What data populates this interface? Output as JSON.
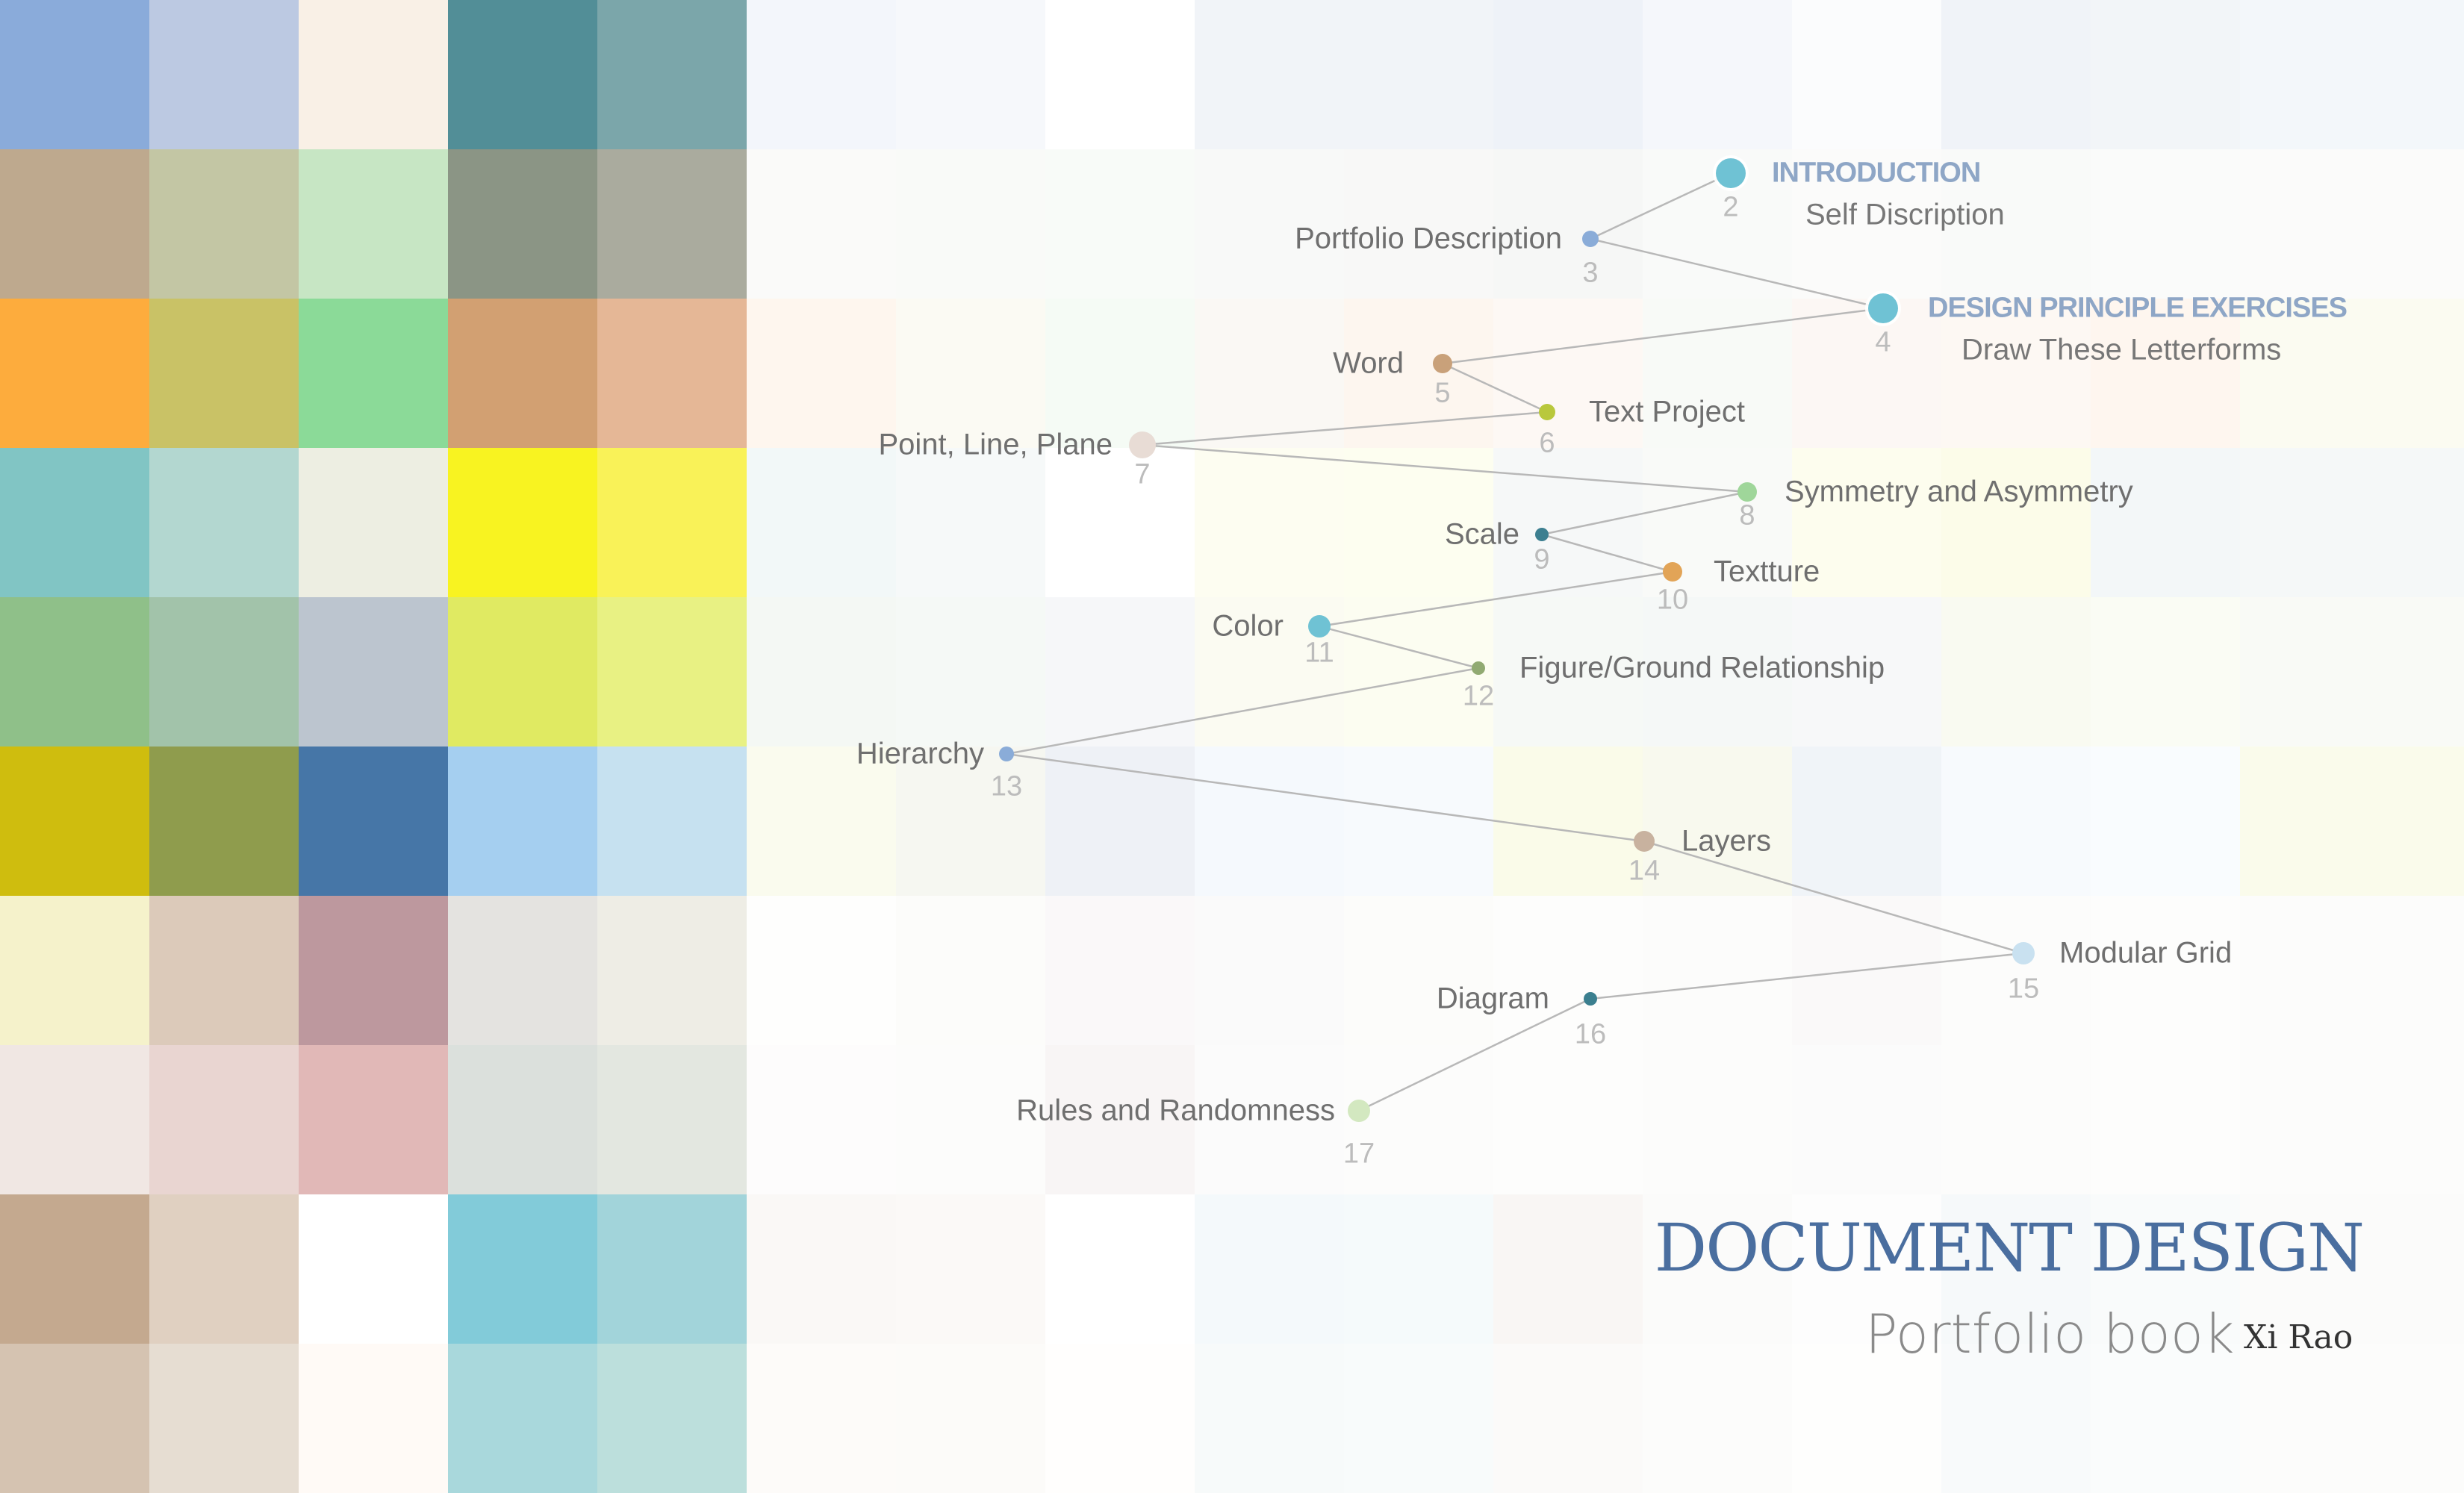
{
  "palette": {
    "rows": [
      [
        "#8aabda",
        "#bcc9e2",
        "#f9f0e6",
        "#528e97",
        "#7ba6aa",
        "#f3f6fb",
        "#f6f8fb",
        "#ffffff",
        "#f1f4f8",
        "#f1f4f8",
        "#eef2f8",
        "#f5f7fb",
        "#fbfcfd",
        "#f0f3f8",
        "#f2f5f8",
        "#f3f7fa"
      ],
      [
        "#bea98e",
        "#c3c6a4",
        "#c7e6c4",
        "#8b9585",
        "#aaab9e",
        "#fafaf9",
        "#f9faf8",
        "#f8fbf8",
        "#f8f9f8",
        "#f8f8f7",
        "#f6f7f6",
        "#f9faf9",
        "#fbfbfa",
        "#f9faf9",
        "#fafbfa",
        "#fbfbfa"
      ],
      [
        "#fdac3d",
        "#c9c266",
        "#8bda98",
        "#d2a072",
        "#e5b796",
        "#fef6ee",
        "#fbfaf3",
        "#f5fbf5",
        "#faf8f4",
        "#fdf6ef",
        "#fdf8f4",
        "#f8faf7",
        "#fcf7f4",
        "#fdf8f3",
        "#fef6ef",
        "#fbfbf1"
      ],
      [
        "#81c5c4",
        "#b3d7d0",
        "#edeee2",
        "#f8f321",
        "#f9f258",
        "#f2f8f8",
        "#f6f9f9",
        "#ffffff",
        "#fdfdf1",
        "#fdfef0",
        "#f6f8f8",
        "#f9faf8",
        "#fdfdee",
        "#fcfce9",
        "#f3f7f8",
        "#f5f8f8"
      ],
      [
        "#8fc089",
        "#a2c3aa",
        "#bcc5cf",
        "#e0ea62",
        "#e8f183",
        "#f4f8f4",
        "#f5f9f6",
        "#f6f7f9",
        "#fbfbf2",
        "#fcfdf1",
        "#f6f9f6",
        "#f5f8f7",
        "#f7f8f9",
        "#f9faf1",
        "#fafcf4",
        "#f9faf6"
      ],
      [
        "#cfbd0e",
        "#8f9c4d",
        "#4676a7",
        "#a5cff0",
        "#c6e1f0",
        "#fafbee",
        "#f6f7f1",
        "#eef1f6",
        "#f5f9fd",
        "#f7fafd",
        "#fafbe9",
        "#f8f9ee",
        "#f0f4f8",
        "#f7fafd",
        "#f9fcfe",
        "#fafbeb"
      ],
      [
        "#f5f2cb",
        "#dccaba",
        "#bd989e",
        "#e4e3e0",
        "#eeede5",
        "#fefefd",
        "#fcfcfa",
        "#faf8f9",
        "#fafafa",
        "#fcfcfa",
        "#fdfdfc",
        "#fcfcfb",
        "#faf9f9",
        "#fcfcfb",
        "#fdfdfc",
        "#fcfcfb"
      ],
      [
        "#f0e7e3",
        "#e9d5d1",
        "#e1b8b7",
        "#dbe0dc",
        "#e3e7e0",
        "#fdfcfc",
        "#fcfcfb",
        "#f8f5f5",
        "#fbfbfb",
        "#fcfcfb",
        "#fdfdfc",
        "#fcfcfb",
        "#fbfbfb",
        "#fcfcfb",
        "#fdfdfc",
        "#fcfcfb"
      ],
      [
        "#c4a98f",
        "#e0d0c1",
        "#ffffff",
        "#82cbd9",
        "#a2d4da",
        "#faf8f6",
        "#fbf9f7",
        "#ffffff",
        "#f4f9fb",
        "#f5fafb",
        "#f9f6f4",
        "#fbfbfa",
        "#fdfdfd",
        "#f6f9fa",
        "#f9fbfb",
        "#fbfbfa"
      ],
      [
        "#d5c3b1",
        "#e6ddd2",
        "#fffaf6",
        "#a9d8dc",
        "#bcdfdc",
        "#fdfbf9",
        "#fcfbf9",
        "#fffefd",
        "#f7fafa",
        "#f8fbfb",
        "#fbfaf9",
        "#fcfcfb",
        "#fefefd",
        "#f8fafb",
        "#fafcfc",
        "#fcfcfb"
      ]
    ]
  },
  "toc": {
    "nodes": [
      {
        "id": "intro",
        "number": "2",
        "label": "INTRODUCTION",
        "sub": "Self Discription",
        "kind": "section",
        "color": "#6fc2d4",
        "side": "right"
      },
      {
        "id": "portfolio-description",
        "number": "3",
        "label": "Portfolio Description",
        "kind": "topic",
        "color": "#8aacd8",
        "side": "left"
      },
      {
        "id": "design-principle",
        "number": "4",
        "label": "DESIGN PRINCIPLE EXERCISES",
        "sub": "Draw These Letterforms",
        "kind": "section",
        "color": "#6fc2d4",
        "side": "right"
      },
      {
        "id": "word",
        "number": "5",
        "label": "Word",
        "kind": "topic",
        "color": "#c9a17a",
        "side": "left"
      },
      {
        "id": "text-project",
        "number": "6",
        "label": "Text Project",
        "kind": "topic",
        "color": "#b9c83c",
        "side": "right"
      },
      {
        "id": "point-line-plane",
        "number": "7",
        "label": "Point, Line, Plane",
        "kind": "topic",
        "color": "#e8dcd5",
        "side": "left"
      },
      {
        "id": "symmetry",
        "number": "8",
        "label": "Symmetry and Asymmetry",
        "kind": "topic",
        "color": "#9fd69a",
        "side": "right"
      },
      {
        "id": "scale",
        "number": "9",
        "label": "Scale",
        "kind": "topic",
        "color": "#3c7f90",
        "side": "left"
      },
      {
        "id": "texture",
        "number": "10",
        "label": "Textture",
        "kind": "topic",
        "color": "#e2a457",
        "side": "right"
      },
      {
        "id": "color",
        "number": "11",
        "label": "Color",
        "kind": "topic",
        "color": "#6fc2d4",
        "side": "left"
      },
      {
        "id": "figure-ground",
        "number": "12",
        "label": "Figure/Ground Relationship",
        "kind": "topic",
        "color": "#91aa72",
        "side": "right"
      },
      {
        "id": "hierarchy",
        "number": "13",
        "label": "Hierarchy",
        "kind": "topic",
        "color": "#8aacd8",
        "side": "left"
      },
      {
        "id": "layers",
        "number": "14",
        "label": "Layers",
        "kind": "topic",
        "color": "#c8b29f",
        "side": "right"
      },
      {
        "id": "modular-grid",
        "number": "15",
        "label": "Modular Grid",
        "kind": "topic",
        "color": "#c9e1f0",
        "side": "right"
      },
      {
        "id": "diagram",
        "number": "16",
        "label": "Diagram",
        "kind": "topic",
        "color": "#3b7f8f",
        "side": "left"
      },
      {
        "id": "rules-randomness",
        "number": "17",
        "label": "Rules and Randomness",
        "kind": "topic",
        "color": "#d3e8c0",
        "side": "left"
      }
    ]
  },
  "title": {
    "main": "DOCUMENT DESIGN",
    "subtitle": "Portfolio book",
    "author": "Xi Rao"
  },
  "colors": {
    "title": "#4a6e9f",
    "section_label": "#8ea6c6",
    "topic_label": "#6f6f6f",
    "number": "#bcbcbc",
    "connector": "#b8b8b8"
  }
}
